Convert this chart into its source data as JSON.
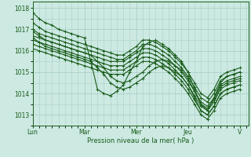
{
  "xlabel": "Pression niveau de la mer( hPa )",
  "ylim": [
    1012.5,
    1018.3
  ],
  "xlim": [
    0,
    100
  ],
  "yticks": [
    1013,
    1014,
    1015,
    1016,
    1017,
    1018
  ],
  "day_labels": [
    "Lun",
    "Mar",
    "Mer",
    "Jeu",
    "V"
  ],
  "day_positions": [
    0,
    24,
    48,
    72,
    96
  ],
  "bg_color": "#cce9e2",
  "grid_color": "#aad0c8",
  "line_color": "#1a5c1a",
  "line_width": 0.8,
  "marker_size": 2.5,
  "series": [
    {
      "t": [
        0,
        3,
        6,
        9,
        12,
        15,
        18,
        21,
        24,
        27,
        30,
        33,
        36,
        39,
        42,
        45,
        48,
        51,
        54,
        57,
        60,
        63,
        66,
        69,
        72,
        75,
        78,
        81,
        84,
        87,
        90,
        93,
        96
      ],
      "y": [
        1017.8,
        1017.5,
        1017.3,
        1017.2,
        1017.0,
        1016.9,
        1016.8,
        1016.7,
        1016.6,
        1015.5,
        1014.2,
        1014.0,
        1013.9,
        1014.1,
        1014.4,
        1015.0,
        1015.5,
        1016.2,
        1016.4,
        1016.5,
        1016.3,
        1016.1,
        1015.8,
        1015.5,
        1015.0,
        1014.2,
        1013.5,
        1013.2,
        1013.8,
        1014.5,
        1014.8,
        1014.9,
        1015.0
      ]
    },
    {
      "t": [
        0,
        3,
        6,
        9,
        12,
        15,
        18,
        21,
        24,
        27,
        30,
        33,
        36,
        39,
        42,
        45,
        48,
        51,
        54,
        57,
        60,
        63,
        66,
        69,
        72,
        75,
        78,
        81,
        84,
        87,
        90,
        93,
        96
      ],
      "y": [
        1017.3,
        1017.1,
        1016.9,
        1016.8,
        1016.7,
        1016.6,
        1016.5,
        1016.4,
        1016.3,
        1016.2,
        1016.1,
        1016.0,
        1015.9,
        1015.8,
        1015.8,
        1016.0,
        1016.2,
        1016.5,
        1016.5,
        1016.4,
        1016.2,
        1016.0,
        1015.7,
        1015.4,
        1015.0,
        1014.5,
        1014.0,
        1013.8,
        1014.2,
        1014.8,
        1015.0,
        1015.1,
        1015.2
      ]
    },
    {
      "t": [
        0,
        3,
        6,
        9,
        12,
        15,
        18,
        21,
        24,
        27,
        30,
        33,
        36,
        39,
        42,
        45,
        48,
        51,
        54,
        57,
        60,
        63,
        66,
        69,
        72,
        75,
        78,
        81,
        84,
        87,
        90,
        93,
        96
      ],
      "y": [
        1017.0,
        1016.8,
        1016.7,
        1016.6,
        1016.5,
        1016.4,
        1016.3,
        1016.2,
        1016.1,
        1016.0,
        1015.9,
        1015.8,
        1015.7,
        1015.6,
        1015.6,
        1015.8,
        1016.0,
        1016.3,
        1016.3,
        1016.2,
        1016.0,
        1015.8,
        1015.5,
        1015.2,
        1014.8,
        1014.3,
        1013.8,
        1013.6,
        1014.0,
        1014.6,
        1014.8,
        1014.9,
        1015.0
      ]
    },
    {
      "t": [
        0,
        3,
        6,
        9,
        12,
        15,
        18,
        21,
        24,
        27,
        30,
        33,
        36,
        39,
        42,
        45,
        48,
        51,
        54,
        57,
        60,
        63,
        66,
        69,
        72,
        75,
        78,
        81,
        84,
        87,
        90,
        93,
        96
      ],
      "y": [
        1016.7,
        1016.6,
        1016.5,
        1016.4,
        1016.3,
        1016.2,
        1016.1,
        1016.0,
        1015.9,
        1015.8,
        1015.7,
        1015.6,
        1015.5,
        1015.5,
        1015.5,
        1015.7,
        1015.9,
        1016.1,
        1016.1,
        1016.0,
        1015.8,
        1015.6,
        1015.3,
        1015.0,
        1014.6,
        1014.1,
        1013.6,
        1013.4,
        1013.8,
        1014.4,
        1014.6,
        1014.7,
        1014.8
      ]
    },
    {
      "t": [
        0,
        3,
        6,
        9,
        12,
        15,
        18,
        21,
        24,
        27,
        30,
        33,
        36,
        39,
        42,
        45,
        48,
        51,
        54,
        57,
        60,
        63,
        66,
        69,
        72,
        75,
        78,
        81,
        84,
        87,
        90,
        93,
        96
      ],
      "y": [
        1016.5,
        1016.4,
        1016.3,
        1016.2,
        1016.1,
        1016.0,
        1015.9,
        1015.8,
        1015.7,
        1015.6,
        1015.5,
        1015.4,
        1015.3,
        1015.3,
        1015.3,
        1015.5,
        1015.7,
        1015.9,
        1015.9,
        1015.8,
        1015.6,
        1015.4,
        1015.1,
        1014.8,
        1014.4,
        1013.9,
        1013.4,
        1013.2,
        1013.6,
        1014.2,
        1014.4,
        1014.5,
        1014.6
      ]
    },
    {
      "t": [
        0,
        3,
        6,
        9,
        12,
        15,
        18,
        21,
        24,
        27,
        30,
        33,
        36,
        39,
        42,
        45,
        48,
        51,
        54,
        57,
        60,
        63,
        66,
        69,
        72,
        75,
        78,
        81,
        84,
        87,
        90,
        93,
        96
      ],
      "y": [
        1016.3,
        1016.2,
        1016.1,
        1016.0,
        1015.9,
        1015.8,
        1015.7,
        1015.6,
        1015.5,
        1015.4,
        1015.3,
        1015.2,
        1015.1,
        1015.1,
        1015.1,
        1015.3,
        1015.5,
        1015.7,
        1015.7,
        1015.6,
        1015.4,
        1015.2,
        1014.9,
        1014.6,
        1014.2,
        1013.7,
        1013.2,
        1013.0,
        1013.4,
        1014.0,
        1014.2,
        1014.3,
        1014.4
      ]
    },
    {
      "t": [
        0,
        3,
        6,
        9,
        12,
        15,
        18,
        21,
        24,
        27,
        30,
        33,
        36,
        39,
        42,
        45,
        48,
        51,
        54,
        57,
        60,
        63,
        66,
        69,
        72,
        75,
        78,
        81,
        84,
        87,
        90,
        93,
        96
      ],
      "y": [
        1016.1,
        1016.0,
        1015.9,
        1015.8,
        1015.7,
        1015.6,
        1015.5,
        1015.4,
        1015.3,
        1015.2,
        1015.1,
        1015.0,
        1014.9,
        1014.9,
        1014.9,
        1015.1,
        1015.3,
        1015.5,
        1015.5,
        1015.4,
        1015.2,
        1015.0,
        1014.7,
        1014.4,
        1014.0,
        1013.5,
        1013.0,
        1012.8,
        1013.2,
        1013.8,
        1014.0,
        1014.1,
        1014.2
      ]
    },
    {
      "t": [
        0,
        3,
        6,
        9,
        12,
        15,
        18,
        21,
        24,
        27,
        30,
        33,
        36,
        39,
        42,
        45,
        48,
        51,
        54,
        57,
        60,
        63,
        66,
        69,
        72,
        75,
        78,
        81,
        84,
        87,
        90,
        93,
        96
      ],
      "y": [
        1016.9,
        1016.7,
        1016.5,
        1016.4,
        1016.3,
        1016.2,
        1016.1,
        1016.0,
        1015.9,
        1015.8,
        1015.5,
        1015.2,
        1014.8,
        1014.6,
        1014.5,
        1014.6,
        1014.8,
        1015.0,
        1015.3,
        1015.5,
        1015.6,
        1015.5,
        1015.3,
        1015.1,
        1014.7,
        1014.1,
        1013.5,
        1013.3,
        1013.7,
        1014.3,
        1014.5,
        1014.6,
        1014.7
      ]
    },
    {
      "t": [
        0,
        3,
        6,
        9,
        12,
        15,
        18,
        21,
        24,
        27,
        30,
        33,
        36,
        39,
        42,
        45,
        48,
        51,
        54,
        57,
        60,
        63,
        66,
        69,
        72,
        75,
        78,
        81,
        84,
        87,
        90,
        93,
        96
      ],
      "y": [
        1016.6,
        1016.4,
        1016.2,
        1016.1,
        1016.0,
        1015.9,
        1015.8,
        1015.7,
        1015.6,
        1015.5,
        1015.2,
        1014.9,
        1014.5,
        1014.3,
        1014.2,
        1014.3,
        1014.5,
        1014.7,
        1015.0,
        1015.2,
        1015.3,
        1015.2,
        1015.0,
        1014.8,
        1014.4,
        1013.8,
        1013.2,
        1013.0,
        1013.4,
        1014.0,
        1014.2,
        1014.3,
        1014.4
      ]
    }
  ]
}
